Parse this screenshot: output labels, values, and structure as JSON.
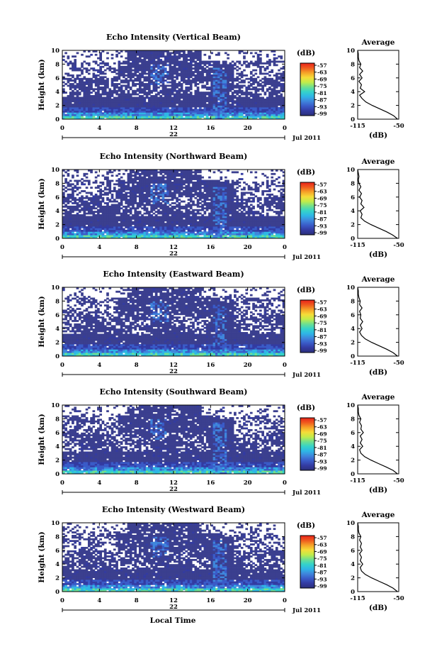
{
  "colors": {
    "background_echo": "#3b3f8f",
    "colormap": [
      "#2c2f7a",
      "#333ba2",
      "#3a5bc8",
      "#3f86dc",
      "#2fb6e6",
      "#35d3c9",
      "#6fe08f",
      "#c2ec4a",
      "#f6dc38",
      "#f6a128",
      "#ef5a1e",
      "#e8221a"
    ]
  },
  "date_label": "Jul 2011",
  "bottom_xlabel": "Local Time",
  "chart_data": [
    {
      "type": "heatmap",
      "title": "Echo Intensity (Vertical Beam)",
      "ylabel": "Height (km)",
      "yticks": [
        "0",
        "2",
        "4",
        "6",
        "8",
        "10"
      ],
      "ylim": [
        0,
        10
      ],
      "xticks": [
        "0",
        "4",
        "8",
        "12",
        "16",
        "20",
        "0"
      ],
      "xlim": [
        0,
        24
      ],
      "day_label": "22",
      "colorbar": {
        "label": "(dB)",
        "ticks": [
          "-57",
          "-63",
          "-69",
          "-75",
          "-81",
          "-87",
          "-93",
          "-99"
        ]
      },
      "average": {
        "title": "Average",
        "xlabel": "(dB)",
        "xticks": [
          "-115",
          "-50"
        ],
        "xlim": [
          -115,
          -50
        ],
        "yticks": [
          "0",
          "2",
          "4",
          "6",
          "8",
          "10"
        ],
        "profile": [
          [
            0,
            -52
          ],
          [
            0.5,
            -58
          ],
          [
            1,
            -68
          ],
          [
            1.5,
            -80
          ],
          [
            2,
            -92
          ],
          [
            2.5,
            -102
          ],
          [
            3,
            -108
          ],
          [
            3.5,
            -112
          ],
          [
            4,
            -104
          ],
          [
            4.5,
            -111
          ],
          [
            5,
            -109
          ],
          [
            5.5,
            -113
          ],
          [
            6,
            -108
          ],
          [
            6.5,
            -112
          ],
          [
            7,
            -107
          ],
          [
            7.5,
            -112
          ],
          [
            8,
            -110
          ],
          [
            8.5,
            -113
          ],
          [
            9,
            -114
          ],
          [
            9.5,
            -114
          ],
          [
            10,
            -115
          ]
        ]
      }
    },
    {
      "type": "heatmap",
      "title": "Echo Intensity (Northward Beam)",
      "ylabel": "Height (km)",
      "yticks": [
        "0",
        "2",
        "4",
        "6",
        "8",
        "10"
      ],
      "ylim": [
        0,
        10
      ],
      "xticks": [
        "0",
        "4",
        "8",
        "12",
        "16",
        "20",
        "0"
      ],
      "xlim": [
        0,
        24
      ],
      "day_label": "22",
      "colorbar": {
        "label": "(dB)",
        "ticks": [
          "-57",
          "-63",
          "-69",
          "-75",
          "-81",
          "-87",
          "-93",
          "-99"
        ]
      },
      "average": {
        "title": "Average",
        "xlabel": "(dB)",
        "xticks": [
          "-115",
          "-50"
        ],
        "xlim": [
          -115,
          -50
        ],
        "yticks": [
          "0",
          "2",
          "4",
          "6",
          "8",
          "10"
        ],
        "profile": [
          [
            0,
            -52
          ],
          [
            0.5,
            -60
          ],
          [
            1,
            -70
          ],
          [
            1.5,
            -82
          ],
          [
            2,
            -94
          ],
          [
            2.5,
            -104
          ],
          [
            3,
            -110
          ],
          [
            3.5,
            -108
          ],
          [
            4,
            -111
          ],
          [
            4.5,
            -105
          ],
          [
            5,
            -110
          ],
          [
            5.5,
            -108
          ],
          [
            6,
            -112
          ],
          [
            6.5,
            -109
          ],
          [
            7,
            -113
          ],
          [
            7.5,
            -110
          ],
          [
            8,
            -113
          ],
          [
            8.5,
            -114
          ],
          [
            9,
            -113
          ],
          [
            9.5,
            -114
          ],
          [
            10,
            -115
          ]
        ]
      }
    },
    {
      "type": "heatmap",
      "title": "Echo Intensity (Eastward Beam)",
      "ylabel": "Height (km)",
      "yticks": [
        "0",
        "2",
        "4",
        "6",
        "8",
        "10"
      ],
      "ylim": [
        0,
        10
      ],
      "xticks": [
        "0",
        "4",
        "8",
        "12",
        "16",
        "20",
        "0"
      ],
      "xlim": [
        0,
        24
      ],
      "day_label": "22",
      "colorbar": {
        "label": "(dB)",
        "ticks": [
          "-57",
          "-63",
          "-69",
          "-75",
          "-81",
          "-87",
          "-93",
          "-99"
        ]
      },
      "average": {
        "title": "Average",
        "xlabel": "(dB)",
        "xticks": [
          "-115",
          "-50"
        ],
        "xlim": [
          -115,
          -50
        ],
        "yticks": [
          "0",
          "2",
          "4",
          "6",
          "8",
          "10"
        ],
        "profile": [
          [
            0,
            -52
          ],
          [
            0.5,
            -59
          ],
          [
            1,
            -69
          ],
          [
            1.5,
            -81
          ],
          [
            2,
            -93
          ],
          [
            2.5,
            -103
          ],
          [
            3,
            -109
          ],
          [
            3.5,
            -112
          ],
          [
            4,
            -108
          ],
          [
            4.5,
            -111
          ],
          [
            5,
            -107
          ],
          [
            5.5,
            -111
          ],
          [
            6,
            -110
          ],
          [
            6.5,
            -112
          ],
          [
            7,
            -108
          ],
          [
            7.5,
            -112
          ],
          [
            8,
            -111
          ],
          [
            8.5,
            -113
          ],
          [
            9,
            -114
          ],
          [
            9.5,
            -114
          ],
          [
            10,
            -115
          ]
        ]
      }
    },
    {
      "type": "heatmap",
      "title": "Echo Intensity (Southward Beam)",
      "ylabel": "Height (km)",
      "yticks": [
        "0",
        "2",
        "4",
        "6",
        "8",
        "10"
      ],
      "ylim": [
        0,
        10
      ],
      "xticks": [
        "0",
        "4",
        "8",
        "12",
        "16",
        "20",
        "0"
      ],
      "xlim": [
        0,
        24
      ],
      "day_label": "22",
      "colorbar": {
        "label": "(dB)",
        "ticks": [
          "-57",
          "-63",
          "-69",
          "-75",
          "-81",
          "-87",
          "-93",
          "-99"
        ]
      },
      "average": {
        "title": "Average",
        "xlabel": "(dB)",
        "xticks": [
          "-115",
          "-50"
        ],
        "xlim": [
          -115,
          -50
        ],
        "yticks": [
          "0",
          "2",
          "4",
          "6",
          "8",
          "10"
        ],
        "profile": [
          [
            0,
            -52
          ],
          [
            0.5,
            -59
          ],
          [
            1,
            -70
          ],
          [
            1.5,
            -82
          ],
          [
            2,
            -94
          ],
          [
            2.5,
            -104
          ],
          [
            3,
            -110
          ],
          [
            3.5,
            -112
          ],
          [
            4,
            -107
          ],
          [
            4.5,
            -111
          ],
          [
            5,
            -108
          ],
          [
            5.5,
            -111
          ],
          [
            6,
            -106
          ],
          [
            6.5,
            -110
          ],
          [
            7,
            -109
          ],
          [
            7.5,
            -112
          ],
          [
            8,
            -110
          ],
          [
            8.5,
            -113
          ],
          [
            9,
            -114
          ],
          [
            9.5,
            -114
          ],
          [
            10,
            -115
          ]
        ]
      }
    },
    {
      "type": "heatmap",
      "title": "Echo Intensity (Westward Beam)",
      "ylabel": "Height (km)",
      "yticks": [
        "0",
        "2",
        "4",
        "6",
        "8",
        "10"
      ],
      "ylim": [
        0,
        10
      ],
      "xticks": [
        "0",
        "4",
        "8",
        "12",
        "16",
        "20",
        "0"
      ],
      "xlim": [
        0,
        24
      ],
      "day_label": "22",
      "colorbar": {
        "label": "(dB)",
        "ticks": [
          "-57",
          "-63",
          "-69",
          "-75",
          "-81",
          "-87",
          "-93",
          "-99"
        ]
      },
      "average": {
        "title": "Average",
        "xlabel": "(dB)",
        "xticks": [
          "-115",
          "-50"
        ],
        "xlim": [
          -115,
          -50
        ],
        "yticks": [
          "0",
          "2",
          "4",
          "6",
          "8",
          "10"
        ],
        "profile": [
          [
            0,
            -52
          ],
          [
            0.5,
            -59
          ],
          [
            1,
            -69
          ],
          [
            1.5,
            -81
          ],
          [
            2,
            -93
          ],
          [
            2.5,
            -103
          ],
          [
            3,
            -109
          ],
          [
            3.5,
            -111
          ],
          [
            4,
            -107
          ],
          [
            4.5,
            -111
          ],
          [
            5,
            -109
          ],
          [
            5.5,
            -112
          ],
          [
            6,
            -108
          ],
          [
            6.5,
            -111
          ],
          [
            7,
            -109
          ],
          [
            7.5,
            -112
          ],
          [
            8,
            -110
          ],
          [
            8.5,
            -113
          ],
          [
            9,
            -114
          ],
          [
            9.5,
            -114
          ],
          [
            10,
            -115
          ]
        ]
      }
    }
  ]
}
